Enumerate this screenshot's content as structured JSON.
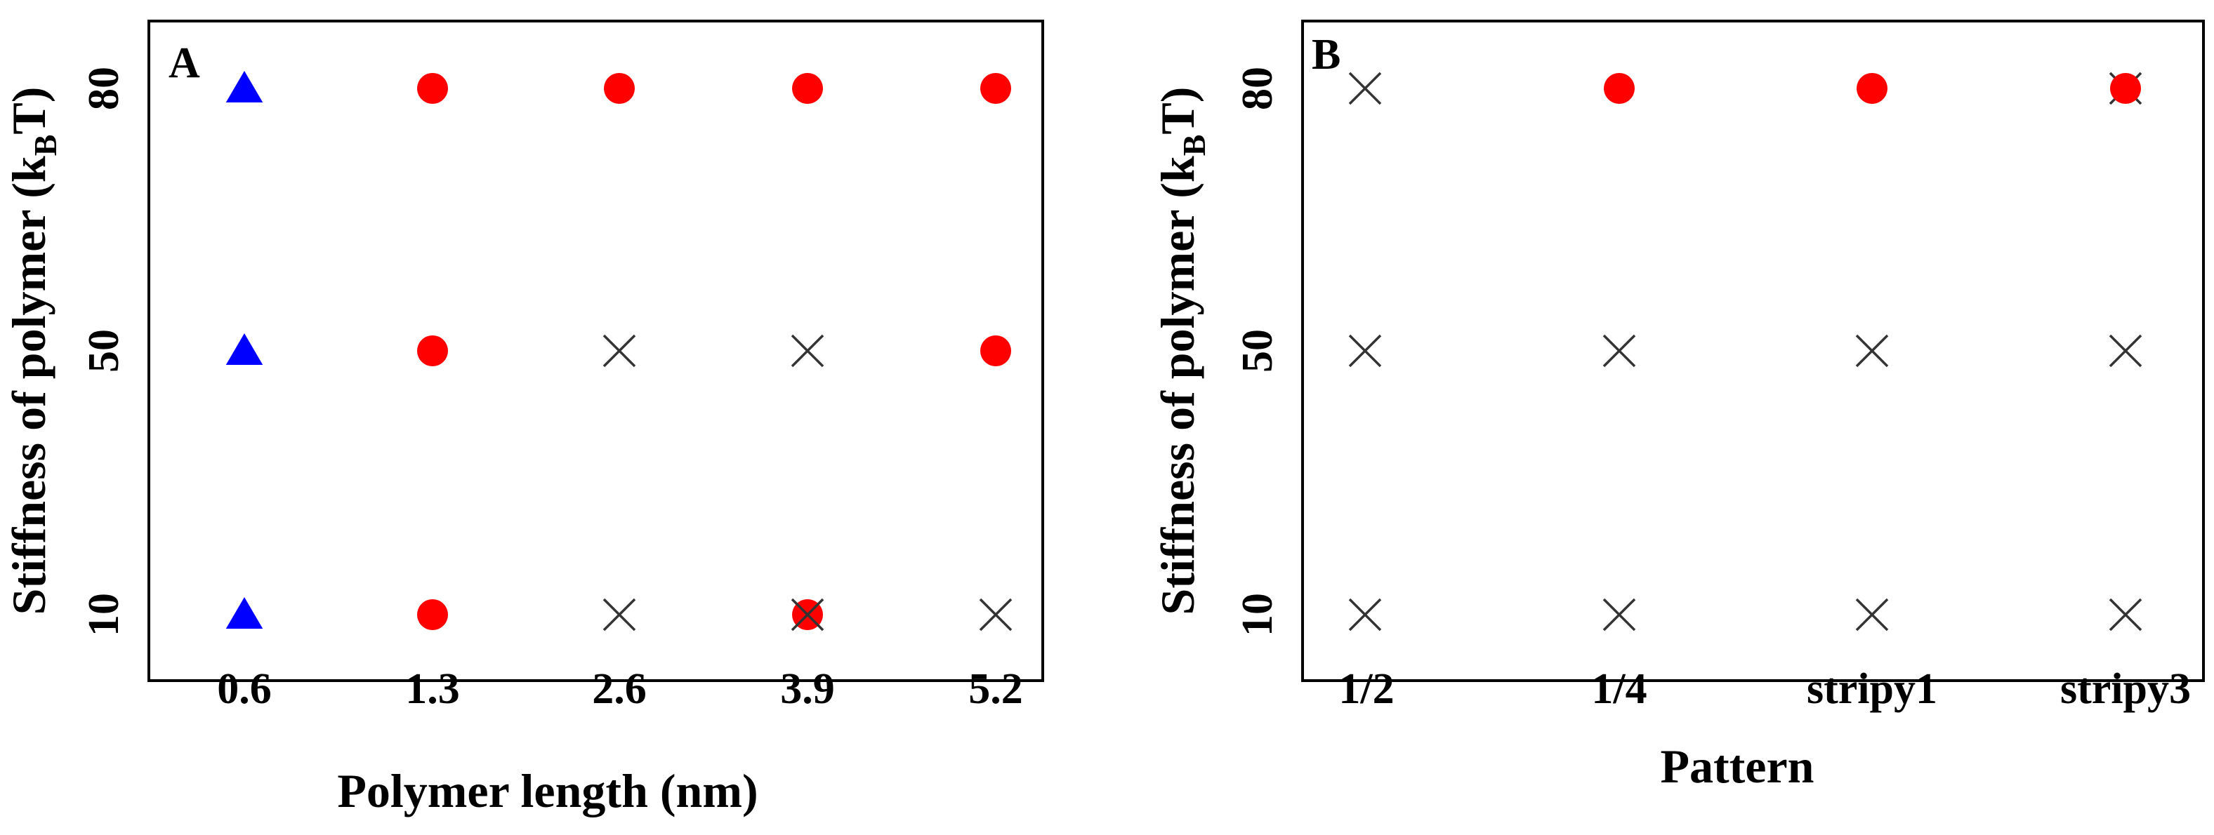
{
  "chart_data": [
    {
      "type": "scatter",
      "panel_label": "A",
      "xlabel": "Polymer length (nm)",
      "ylabel": "Stiffness of polymer (kBT)",
      "ylabel_parts": {
        "main": "Stiffness of polymer (k",
        "subscript": "B",
        "tail": "T)"
      },
      "categories": [
        "0.6",
        "1.3",
        "2.6",
        "3.9",
        "5.2"
      ],
      "y_ticks": [
        "10",
        "50",
        "80"
      ],
      "grid": false,
      "legend": "none",
      "series": [
        {
          "marker": "triangle",
          "color": "#0000FF",
          "points": [
            {
              "x": "0.6",
              "y": 10
            },
            {
              "x": "0.6",
              "y": 50
            },
            {
              "x": "0.6",
              "y": 80
            }
          ]
        },
        {
          "marker": "circle",
          "color": "#FF0000",
          "points": [
            {
              "x": "1.3",
              "y": 10
            },
            {
              "x": "1.3",
              "y": 50
            },
            {
              "x": "1.3",
              "y": 80
            },
            {
              "x": "2.6",
              "y": 80
            },
            {
              "x": "3.9",
              "y": 10
            },
            {
              "x": "3.9",
              "y": 80
            },
            {
              "x": "5.2",
              "y": 50
            },
            {
              "x": "5.2",
              "y": 80
            }
          ]
        },
        {
          "marker": "cross",
          "color": "#333333",
          "points": [
            {
              "x": "2.6",
              "y": 10
            },
            {
              "x": "2.6",
              "y": 50
            },
            {
              "x": "3.9",
              "y": 10
            },
            {
              "x": "3.9",
              "y": 50
            },
            {
              "x": "5.2",
              "y": 10
            }
          ]
        }
      ]
    },
    {
      "type": "scatter",
      "panel_label": "B",
      "xlabel": "Pattern",
      "ylabel": "Stiffness of polymer (kBT)",
      "ylabel_parts": {
        "main": "Stiffness of polymer (k",
        "subscript": "B",
        "tail": "T)"
      },
      "categories": [
        "1/2",
        "1/4",
        "stripy1",
        "stripy3"
      ],
      "y_ticks": [
        "10",
        "50",
        "80"
      ],
      "grid": false,
      "legend": "none",
      "series": [
        {
          "marker": "cross",
          "color": "#333333",
          "points": [
            {
              "x": "1/2",
              "y": 10
            },
            {
              "x": "1/2",
              "y": 50
            },
            {
              "x": "1/2",
              "y": 80
            },
            {
              "x": "1/4",
              "y": 10
            },
            {
              "x": "1/4",
              "y": 50
            },
            {
              "x": "stripy1",
              "y": 10
            },
            {
              "x": "stripy1",
              "y": 50
            },
            {
              "x": "stripy3",
              "y": 10
            },
            {
              "x": "stripy3",
              "y": 50
            },
            {
              "x": "stripy3",
              "y": 80
            }
          ]
        },
        {
          "marker": "circle",
          "color": "#FF0000",
          "points": [
            {
              "x": "1/4",
              "y": 80
            },
            {
              "x": "stripy1",
              "y": 80
            },
            {
              "x": "stripy3",
              "y": 80
            }
          ]
        }
      ]
    }
  ]
}
